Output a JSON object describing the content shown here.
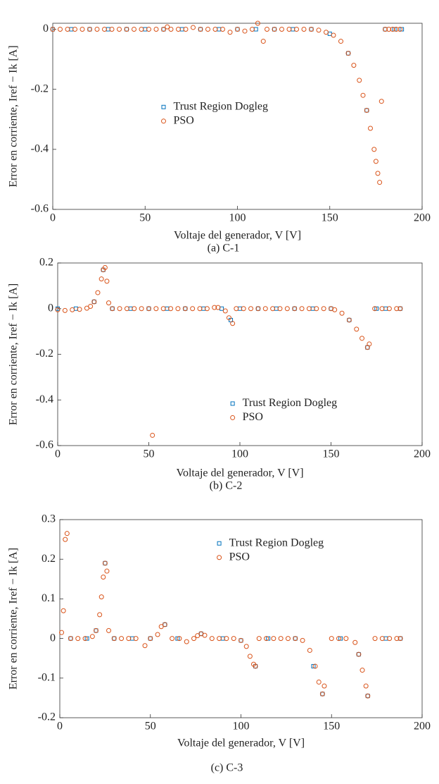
{
  "chart_data": [
    {
      "type": "scatter",
      "caption": "(a) C-1",
      "xlabel": "Voltaje del generador, V [V]",
      "ylabel": "Error en corriente, Iref − Ik [A]",
      "xlim": [
        0,
        200
      ],
      "xticks": [
        0,
        50,
        100,
        150,
        200
      ],
      "ylim": [
        -0.6,
        0.02
      ],
      "yticks": [
        0,
        -0.2,
        -0.4,
        -0.6
      ],
      "legend": "center",
      "series": [
        {
          "name": "Trust Region Dogleg",
          "color": "#0072bd",
          "marker": "square",
          "x": [
            0,
            10,
            20,
            30,
            40,
            50,
            60,
            70,
            80,
            90,
            100,
            110,
            120,
            130,
            140,
            150,
            160,
            170,
            180,
            185,
            189
          ],
          "values": [
            0,
            0,
            0,
            0,
            0,
            0,
            0,
            0,
            0,
            0,
            0,
            0,
            0,
            0,
            0,
            -0.015,
            -0.08,
            -0.27,
            0,
            0,
            0
          ]
        },
        {
          "name": "PSO",
          "color": "#d95319",
          "marker": "circle",
          "x": [
            0,
            4,
            8,
            12,
            16,
            20,
            24,
            28,
            32,
            36,
            40,
            44,
            48,
            52,
            56,
            60,
            62,
            64,
            68,
            72,
            76,
            80,
            84,
            88,
            92,
            96,
            100,
            104,
            108,
            111,
            114,
            116,
            120,
            124,
            128,
            132,
            136,
            140,
            144,
            148,
            152,
            156,
            160,
            163,
            166,
            168,
            170,
            172,
            174,
            175,
            176,
            177,
            178,
            180,
            182,
            184,
            186,
            188
          ],
          "values": [
            0,
            0,
            0,
            0,
            0,
            0,
            0,
            0,
            0,
            0,
            0,
            0,
            0,
            0,
            0,
            0,
            0.008,
            0,
            0,
            0,
            0.006,
            0,
            0,
            0,
            0,
            -0.01,
            0,
            -0.006,
            0,
            0.02,
            -0.04,
            0,
            0,
            0,
            0,
            0,
            0,
            0,
            -0.003,
            -0.01,
            -0.02,
            -0.04,
            -0.08,
            -0.12,
            -0.17,
            -0.22,
            -0.27,
            -0.33,
            -0.4,
            -0.44,
            -0.48,
            -0.51,
            -0.24,
            0,
            0,
            0,
            0,
            0
          ]
        }
      ]
    },
    {
      "type": "scatter",
      "caption": "(b) C-2",
      "xlabel": "Voltaje del generador, V [V]",
      "ylabel": "Error en corriente, Iref − Ik [A]",
      "xlim": [
        0,
        200
      ],
      "xticks": [
        0,
        50,
        100,
        150,
        200
      ],
      "ylim": [
        -0.6,
        0.2
      ],
      "yticks": [
        0.2,
        0,
        -0.2,
        -0.4,
        -0.6
      ],
      "legend": "lower right",
      "series": [
        {
          "name": "Trust Region Dogleg",
          "color": "#0072bd",
          "marker": "square",
          "x": [
            0,
            10,
            20,
            25,
            30,
            40,
            50,
            60,
            70,
            80,
            90,
            95,
            100,
            110,
            120,
            130,
            140,
            150,
            160,
            170,
            175,
            180,
            188
          ],
          "values": [
            0,
            0,
            0.03,
            0.17,
            0,
            0,
            0,
            0,
            0,
            0,
            0,
            -0.05,
            0,
            0,
            0,
            0,
            0,
            0,
            -0.05,
            -0.17,
            0,
            0,
            0
          ]
        },
        {
          "name": "PSO",
          "color": "#d95319",
          "marker": "circle",
          "x": [
            0,
            4,
            8,
            12,
            16,
            18,
            20,
            22,
            24,
            25,
            26,
            27,
            28,
            30,
            34,
            38,
            42,
            46,
            50,
            52,
            54,
            58,
            62,
            66,
            70,
            74,
            78,
            82,
            86,
            88,
            92,
            94,
            96,
            98,
            102,
            106,
            110,
            114,
            118,
            122,
            126,
            130,
            134,
            138,
            142,
            146,
            150,
            152,
            156,
            160,
            164,
            167,
            170,
            171,
            174,
            178,
            182,
            186,
            188
          ],
          "values": [
            -0.005,
            -0.008,
            -0.005,
            -0.003,
            0.002,
            0.01,
            0.03,
            0.07,
            0.13,
            0.17,
            0.18,
            0.12,
            0.025,
            0,
            0,
            0,
            0,
            0,
            0,
            -0.555,
            0,
            0,
            0,
            0,
            0,
            0,
            0,
            0,
            0.005,
            0.005,
            -0.01,
            -0.04,
            -0.065,
            0,
            0,
            0,
            0,
            0,
            0,
            0,
            0,
            0,
            0,
            0,
            0,
            0,
            0,
            -0.005,
            -0.02,
            -0.05,
            -0.09,
            -0.13,
            -0.17,
            -0.155,
            0,
            0,
            0,
            0,
            0
          ]
        }
      ]
    },
    {
      "type": "scatter",
      "caption": "(c) C-3",
      "xlabel": "Voltaje del generador, V [V]",
      "ylabel": "Error en corriente, Iref − Ik [A]",
      "xlim": [
        0,
        200
      ],
      "xticks": [
        0,
        50,
        100,
        150,
        200
      ],
      "ylim": [
        -0.2,
        0.3
      ],
      "yticks": [
        0.3,
        0.2,
        0.1,
        0,
        -0.1,
        -0.2
      ],
      "legend": "upper right",
      "series": [
        {
          "name": "Trust Region Dogleg",
          "color": "#0072bd",
          "marker": "square",
          "x": [
            6,
            15,
            20,
            25,
            30,
            40,
            50,
            58,
            65,
            78,
            90,
            100,
            108,
            115,
            130,
            140,
            145,
            155,
            165,
            170,
            180,
            188
          ],
          "values": [
            0,
            0,
            0.02,
            0.19,
            0,
            0,
            0,
            0.035,
            0,
            0.012,
            0,
            -0.005,
            -0.07,
            0,
            0,
            -0.07,
            -0.14,
            0,
            -0.04,
            -0.145,
            0,
            0
          ]
        },
        {
          "name": "PSO",
          "color": "#d95319",
          "marker": "circle",
          "x": [
            1,
            2,
            3,
            4,
            6,
            10,
            14,
            18,
            20,
            22,
            23,
            24,
            25,
            26,
            27,
            30,
            34,
            38,
            42,
            47,
            50,
            54,
            56,
            58,
            62,
            66,
            70,
            74,
            76,
            78,
            80,
            84,
            88,
            92,
            96,
            100,
            103,
            105,
            107,
            108,
            110,
            114,
            118,
            122,
            126,
            130,
            134,
            138,
            141,
            143,
            145,
            146,
            150,
            154,
            158,
            163,
            165,
            167,
            169,
            170,
            174,
            178,
            182,
            186,
            188
          ],
          "values": [
            0.015,
            0.07,
            0.25,
            0.265,
            0,
            0,
            0,
            0.005,
            0.02,
            0.06,
            0.105,
            0.155,
            0.19,
            0.17,
            0.02,
            0,
            0,
            0,
            0,
            -0.018,
            0,
            0.01,
            0.03,
            0.035,
            0,
            0,
            -0.008,
            0,
            0.007,
            0.012,
            0.008,
            0,
            0,
            0,
            0,
            -0.005,
            -0.02,
            -0.045,
            -0.065,
            -0.07,
            0,
            0,
            0,
            0,
            0,
            0,
            -0.005,
            -0.03,
            -0.07,
            -0.11,
            -0.14,
            -0.12,
            0,
            0,
            0,
            -0.01,
            -0.04,
            -0.08,
            -0.12,
            -0.145,
            0,
            0,
            0,
            0,
            0
          ]
        }
      ]
    }
  ]
}
